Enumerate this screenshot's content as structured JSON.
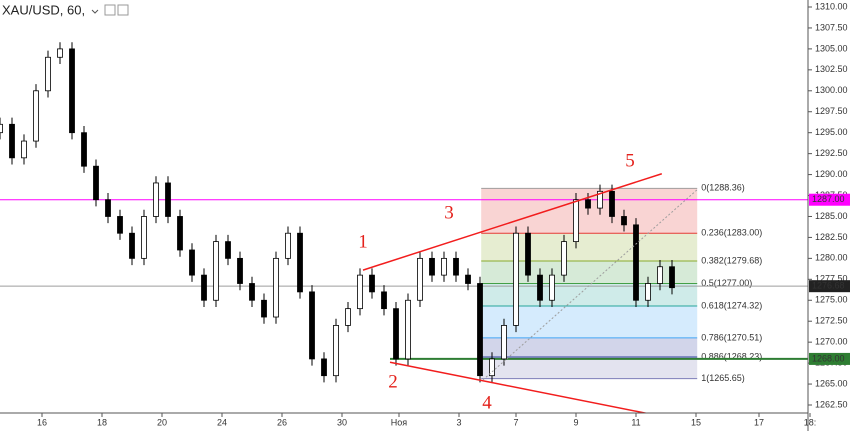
{
  "chart_data": {
    "type": "candlestick",
    "title": "XAU/USD, 60,",
    "x": [
      0,
      2,
      4,
      6,
      8,
      10,
      12,
      14,
      16,
      18,
      20,
      22,
      24,
      26,
      28,
      30,
      32,
      34,
      36,
      38,
      40,
      42,
      44,
      46,
      48,
      50,
      52,
      54,
      56,
      58,
      60,
      62,
      64,
      66,
      68,
      70,
      72,
      74,
      76,
      78,
      80,
      82,
      84,
      86,
      88,
      90,
      92,
      94,
      96,
      98,
      100,
      102,
      104,
      106,
      108,
      110,
      112
    ],
    "open": [
      1295,
      1296,
      1292,
      1294,
      1300,
      1304,
      1305,
      1295,
      1291,
      1287,
      1285,
      1283,
      1280,
      1285,
      1289,
      1285,
      1281,
      1278,
      1275,
      1282,
      1280,
      1277,
      1275,
      1273,
      1280,
      1283,
      1276,
      1268,
      1266,
      1272,
      1274,
      1278,
      1276,
      1274,
      1268,
      1275,
      1280,
      1278,
      1280,
      1278,
      1277,
      1266,
      1268,
      1272,
      1283,
      1278,
      1275,
      1278,
      1282,
      1287,
      1286,
      1288,
      1285,
      1284,
      1275,
      1277,
      1279
    ],
    "high": [
      1296.8,
      1296.8,
      1294.8,
      1300.8,
      1304.8,
      1305.8,
      1305.8,
      1295.8,
      1291.8,
      1287.8,
      1285.8,
      1283.8,
      1285.8,
      1289.8,
      1289.8,
      1285.8,
      1281.8,
      1278.8,
      1282.8,
      1282.8,
      1280.8,
      1277.8,
      1275.8,
      1280.8,
      1283.8,
      1283.8,
      1276.8,
      1268.8,
      1272.8,
      1274.8,
      1278.8,
      1278.8,
      1276.8,
      1274.8,
      1275.8,
      1280.8,
      1280.8,
      1280.8,
      1280.8,
      1278.8,
      1277.8,
      1268.8,
      1272.8,
      1283.8,
      1283.8,
      1278.8,
      1278.8,
      1282.8,
      1287.8,
      1287.8,
      1288.8,
      1288.8,
      1285.8,
      1284.8,
      1277.8,
      1279.8,
      1279.8
    ],
    "low": [
      1294.2,
      1291.2,
      1291.2,
      1293.2,
      1299.2,
      1303.2,
      1294.2,
      1290.2,
      1286.2,
      1284.2,
      1282.2,
      1279.2,
      1279.2,
      1284.2,
      1284.2,
      1280.2,
      1277.2,
      1274.2,
      1274.2,
      1279.2,
      1276.2,
      1274.2,
      1272.2,
      1272.2,
      1279.2,
      1275.2,
      1267.2,
      1265.2,
      1265.2,
      1271.2,
      1273.2,
      1275.2,
      1273.2,
      1267.2,
      1267.2,
      1274.2,
      1277.2,
      1277.2,
      1277.2,
      1276.2,
      1265.2,
      1265.2,
      1267.2,
      1271.2,
      1277.2,
      1274.2,
      1274.2,
      1277.2,
      1281.2,
      1285.2,
      1285.2,
      1284.2,
      1283.2,
      1274.2,
      1274.2,
      1276.2,
      1275.7
    ],
    "close": [
      1296,
      1292,
      1294,
      1300,
      1304,
      1305,
      1295,
      1291,
      1287,
      1285,
      1283,
      1280,
      1285,
      1289,
      1285,
      1281,
      1278,
      1275,
      1282,
      1280,
      1277,
      1275,
      1273,
      1280,
      1283,
      1276,
      1268,
      1266,
      1272,
      1274,
      1278,
      1276,
      1274,
      1268,
      1275,
      1280,
      1278,
      1280,
      1278,
      1277,
      1266,
      1268,
      1272,
      1283,
      1278,
      1275,
      1278,
      1282,
      1287,
      1286,
      1288,
      1285,
      1284,
      1275,
      1277,
      1279,
      1276.5
    ],
    "xlim": [
      0,
      135
    ],
    "ylim": [
      1262.5,
      1310
    ],
    "xticks": [
      {
        "value": 7,
        "label": "16"
      },
      {
        "value": 17,
        "label": "18"
      },
      {
        "value": 27,
        "label": "20"
      },
      {
        "value": 37,
        "label": "24"
      },
      {
        "value": 47,
        "label": "26"
      },
      {
        "value": 57,
        "label": "30"
      },
      {
        "value": 66.5,
        "label": "Ноя"
      },
      {
        "value": 76.5,
        "label": "3"
      },
      {
        "value": 86,
        "label": "7"
      },
      {
        "value": 96,
        "label": "9"
      },
      {
        "value": 106,
        "label": "11"
      },
      {
        "value": 116,
        "label": "15"
      },
      {
        "value": 126.5,
        "label": "17"
      },
      {
        "value": 135,
        "label": "18:"
      }
    ],
    "yticks": [
      {
        "value": 1262.5,
        "label": "1262.50"
      },
      {
        "value": 1265,
        "label": "1265.00"
      },
      {
        "value": 1267.5,
        "label": "1267.50"
      },
      {
        "value": 1270,
        "label": "1270.00"
      },
      {
        "value": 1272.5,
        "label": "1272.50"
      },
      {
        "value": 1275,
        "label": "1275.00"
      },
      {
        "value": 1277.5,
        "label": "1277.50"
      },
      {
        "value": 1280,
        "label": "1280.00"
      },
      {
        "value": 1282.5,
        "label": "1282.50"
      },
      {
        "value": 1285,
        "label": "1285.00"
      },
      {
        "value": 1287.5,
        "label": "1287.50"
      },
      {
        "value": 1290,
        "label": "1290.00"
      },
      {
        "value": 1292.5,
        "label": "1292.50"
      },
      {
        "value": 1295,
        "label": "1295.00"
      },
      {
        "value": 1297.5,
        "label": "1297.50"
      },
      {
        "value": 1300,
        "label": "1300.00"
      },
      {
        "value": 1302.5,
        "label": "1302.50"
      },
      {
        "value": 1305,
        "label": "1305.00"
      },
      {
        "value": 1307.5,
        "label": "1307.50"
      },
      {
        "value": 1310,
        "label": "1310.00"
      }
    ],
    "hlines": [
      {
        "value": 1287,
        "label": "1287.00",
        "color": "#ff00ff",
        "from": 0
      },
      {
        "value": 1276.68,
        "label": "1276.68",
        "color": "#9e9e9e",
        "from": 0
      },
      {
        "value": 1268,
        "label": "1268.00",
        "color": "#2e7d32",
        "from": 65
      }
    ],
    "fib": {
      "from": 80.2,
      "to": 116.2,
      "levels": [
        {
          "price": 1288.36,
          "label": "0(1288.36)",
          "color": "#9e9e9e"
        },
        {
          "price": 1283.0,
          "label": "0.236(1283.00)",
          "color": "#e53935"
        },
        {
          "price": 1279.68,
          "label": "0.382(1279.68)",
          "color": "#8bab2e"
        },
        {
          "price": 1277.0,
          "label": "0.5(1277.00)",
          "color": "#43a047"
        },
        {
          "price": 1274.32,
          "label": "0.618(1274.32)",
          "color": "#26a69a"
        },
        {
          "price": 1270.51,
          "label": "0.786(1270.51)",
          "color": "#42a5f5"
        },
        {
          "price": 1268.23,
          "label": "0.886(1268.23)",
          "color": "#303f9f"
        },
        {
          "price": 1265.65,
          "label": "1(1265.65)",
          "color": "#7e7eb8"
        }
      ]
    },
    "trendlines": [
      {
        "x1": 60.5,
        "y1": 1278.6,
        "x2": 110.3,
        "y2": 1290.1,
        "color": "#f21d1d",
        "dash": false
      },
      {
        "x1": 65,
        "y1": 1267.6,
        "x2": 109.2,
        "y2": 1261.3,
        "color": "#f21d1d",
        "dash": false
      },
      {
        "x1": 80.5,
        "y1": 1265.5,
        "x2": 116.2,
        "y2": 1288.2,
        "color": "#9e9e9e",
        "dash": true
      }
    ],
    "wave_labels": [
      "1",
      "2",
      "3",
      "4",
      "5"
    ]
  }
}
